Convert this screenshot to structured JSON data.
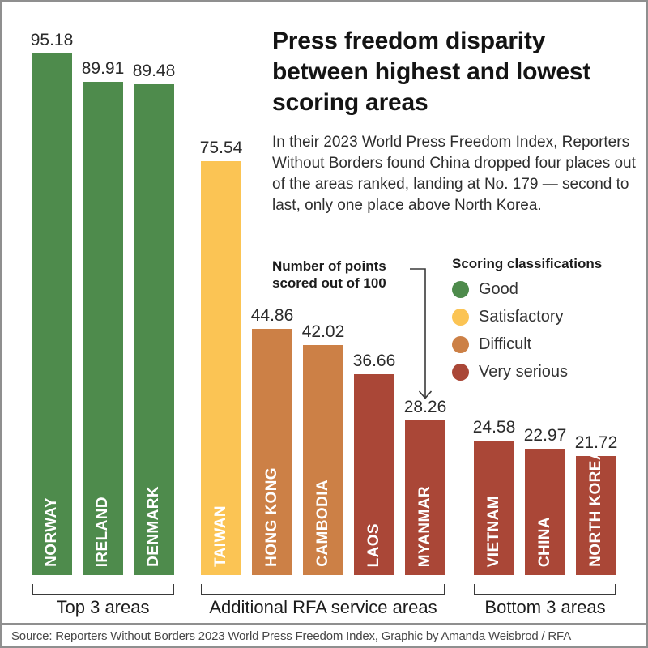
{
  "title": "Press freedom disparity between highest and lowest scoring areas",
  "subtitle": "In their 2023 World Press Freedom Index, Reporters Without Borders found China dropped four places out of the areas ranked, landing at No. 179 — second to last, only one place above North Korea.",
  "annotation": "Number of points scored out of 100",
  "legend": {
    "title": "Scoring classifications",
    "items": [
      {
        "label": "Good",
        "color": "#4e8b4c"
      },
      {
        "label": "Satisfactory",
        "color": "#fbc454"
      },
      {
        "label": "Difficult",
        "color": "#cc8046"
      },
      {
        "label": "Very serious",
        "color": "#aa4737"
      }
    ]
  },
  "source": "Source: Reporters Without Borders 2023 World Press Freedom Index, Graphic by Amanda Weisbrod / RFA",
  "chart_data": {
    "type": "bar",
    "title": "Press freedom disparity between highest and lowest scoring areas",
    "ylabel": "Number of points scored out of 100",
    "ylim": [
      0,
      100
    ],
    "grid": false,
    "legend_position": "right",
    "groups": [
      {
        "label": "Top 3 areas",
        "bars": [
          {
            "name": "NORWAY",
            "value": 95.18,
            "classification": "Good"
          },
          {
            "name": "IRELAND",
            "value": 89.91,
            "classification": "Good"
          },
          {
            "name": "DENMARK",
            "value": 89.48,
            "classification": "Good"
          }
        ]
      },
      {
        "label": "Additional RFA service areas",
        "bars": [
          {
            "name": "TAIWAN",
            "value": 75.54,
            "classification": "Satisfactory"
          },
          {
            "name": "HONG KONG",
            "value": 44.86,
            "classification": "Difficult"
          },
          {
            "name": "CAMBODIA",
            "value": 42.02,
            "classification": "Difficult"
          },
          {
            "name": "LAOS",
            "value": 36.66,
            "classification": "Very serious"
          },
          {
            "name": "MYANMAR",
            "value": 28.26,
            "classification": "Very serious"
          }
        ]
      },
      {
        "label": "Bottom 3 areas",
        "bars": [
          {
            "name": "VIETNAM",
            "value": 24.58,
            "classification": "Very serious"
          },
          {
            "name": "CHINA",
            "value": 22.97,
            "classification": "Very serious"
          },
          {
            "name": "NORTH KOREA",
            "value": 21.72,
            "classification": "Very serious"
          }
        ]
      }
    ]
  }
}
